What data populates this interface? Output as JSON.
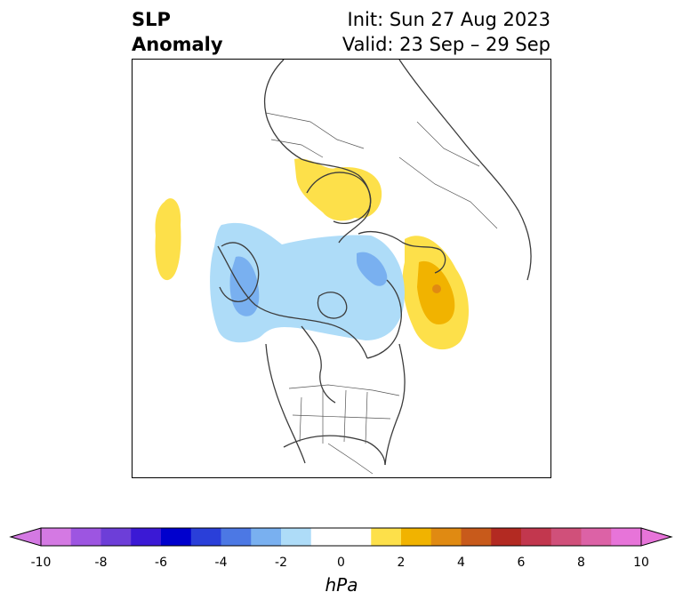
{
  "title": {
    "variable_line1": "SLP",
    "variable_line2": "Anomaly",
    "init": "Init: Sun 27 Aug 2023",
    "valid": "Valid: 23 Sep – 29 Sep"
  },
  "map": {
    "projection": "polar stereographic (North Pole)",
    "features": [
      {
        "kind": "positive-anomaly",
        "region": "Scandinavia / Baltic",
        "max_hPa": 2
      },
      {
        "kind": "positive-anomaly",
        "region": "North Atlantic (west of Europe)",
        "max_hPa": 2
      },
      {
        "kind": "positive-anomaly",
        "region": "Northeast Pacific / Bering",
        "max_hPa": 4
      },
      {
        "kind": "negative-anomaly",
        "region": "Eastern Siberia",
        "min_hPa": -4
      },
      {
        "kind": "negative-anomaly",
        "region": "Arctic Ocean / Canadian Arctic",
        "min_hPa": -2
      },
      {
        "kind": "negative-anomaly",
        "region": "Laptev / East Siberian Sea",
        "min_hPa": -4
      }
    ]
  },
  "colorbar": {
    "units": "hPa",
    "min": -10,
    "max": 10,
    "step": 1,
    "tick_labels": [
      "-10",
      "-8",
      "-6",
      "-4",
      "-2",
      "0",
      "2",
      "4",
      "6",
      "8",
      "10"
    ],
    "colors": [
      "#d479e3",
      "#9d55e1",
      "#6d3ed8",
      "#3b19d5",
      "#0000cd",
      "#2a3fd9",
      "#4c78e4",
      "#79b0f0",
      "#aedcf8",
      "#ffffff",
      "#ffffff",
      "#fde04a",
      "#f1b300",
      "#e08a12",
      "#c85a1b",
      "#b32a22",
      "#c2374e",
      "#d0507a",
      "#dc62a6",
      "#e774d9"
    ],
    "extend": "both"
  }
}
